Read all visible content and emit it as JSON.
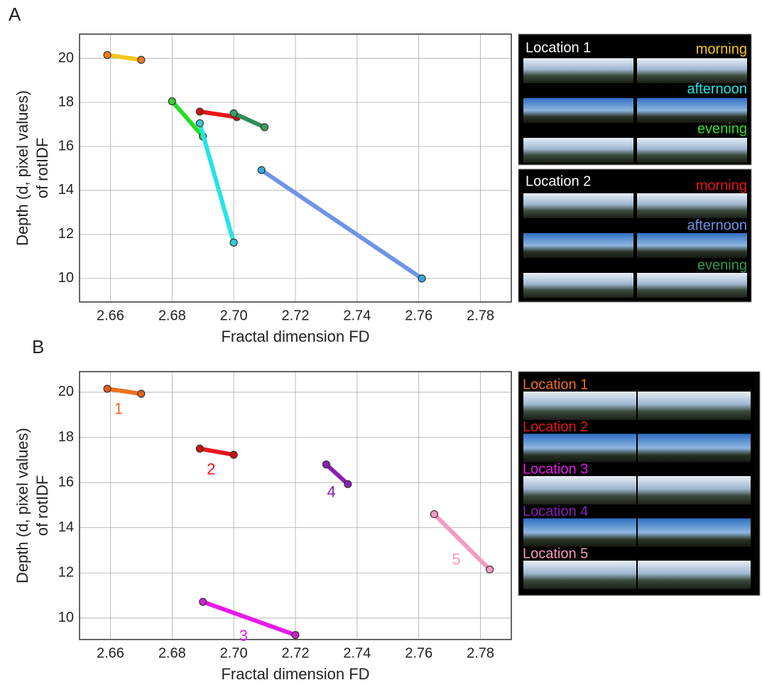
{
  "panel_labels": [
    "A",
    "B"
  ],
  "chart_data": [
    {
      "type": "segments",
      "xlabel": "Fractal dimension FD",
      "ylabel": [
        "Depth (d, pixel values)",
        "of rotIDF"
      ],
      "xlim": [
        2.65,
        2.79
      ],
      "ylim": [
        8.93,
        21.1
      ],
      "xticks": [
        2.66,
        2.68,
        {
          "value": 2.7,
          "label": "2.70"
        },
        2.72,
        2.74,
        2.76,
        2.78
      ],
      "yticks": [
        10,
        12,
        14,
        16,
        18,
        20
      ],
      "grid": true,
      "series": [
        {
          "color": "#f5c518",
          "marker_color": "#f07a20",
          "x": [
            2.659,
            2.67
          ],
          "values": [
            20.15,
            19.93
          ]
        },
        {
          "color": "#22dd22",
          "marker_color": "#44cc33",
          "x": [
            2.68,
            2.69
          ],
          "values": [
            18.05,
            16.45
          ]
        },
        {
          "color": "#e8141a",
          "marker_color": "#cc1111",
          "x": [
            2.689,
            2.701
          ],
          "values": [
            17.58,
            17.33
          ]
        },
        {
          "color": "#2e8b57",
          "marker_color": "#3aa060",
          "x": [
            2.7,
            2.71
          ],
          "values": [
            17.5,
            16.87
          ]
        },
        {
          "color": "#22e5e5",
          "marker_color": "#33ccdd",
          "x": [
            2.689,
            2.7
          ],
          "values": [
            17.05,
            11.63
          ]
        },
        {
          "color": "#6f94e8",
          "marker_color": "#33aadd",
          "x": [
            2.709,
            2.761
          ],
          "values": [
            14.92,
            10.0
          ]
        }
      ]
    },
    {
      "type": "segments",
      "xlabel": "Fractal dimension FD",
      "ylabel": [
        "Depth (d, pixel values)",
        "of rotIDF"
      ],
      "xlim": [
        2.65,
        2.79
      ],
      "ylim": [
        9.05,
        20.91
      ],
      "xticks": [
        2.66,
        2.68,
        {
          "value": 2.7,
          "label": "2.70"
        },
        2.72,
        2.74,
        2.76,
        2.78
      ],
      "yticks": [
        10,
        12,
        14,
        16,
        18,
        20
      ],
      "grid": true,
      "series": [
        {
          "name": "1",
          "color": "#f07020",
          "marker_color": "#e06018",
          "x": [
            2.659,
            2.67
          ],
          "values": [
            20.15,
            19.93
          ]
        },
        {
          "name": "2",
          "color": "#e8141a",
          "marker_color": "#cc1111",
          "x": [
            2.689,
            2.7
          ],
          "values": [
            17.5,
            17.23
          ]
        },
        {
          "name": "3",
          "color": "#e81ae8",
          "marker_color": "#cc22cc",
          "x": [
            2.69,
            2.72
          ],
          "values": [
            10.72,
            9.25
          ]
        },
        {
          "name": "4",
          "color": "#8a1fb5",
          "marker_color": "#8a1fb5",
          "x": [
            2.73,
            2.737
          ],
          "values": [
            16.8,
            15.93
          ]
        },
        {
          "name": "5",
          "color": "#f49ac2",
          "marker_color": "#f49ac2",
          "x": [
            2.765,
            2.783
          ],
          "values": [
            14.6,
            12.15
          ]
        }
      ]
    }
  ],
  "photo_panels": [
    {
      "title": "Location 1",
      "entries": [
        {
          "label": "morning",
          "color": "#f5c518"
        },
        {
          "label": "afternoon",
          "color": "#22e5e5"
        },
        {
          "label": "evening",
          "color": "#33dd22"
        }
      ]
    },
    {
      "title": "Location 2",
      "entries": [
        {
          "label": "morning",
          "color": "#e8141a"
        },
        {
          "label": "afternoon",
          "color": "#6f94e8"
        },
        {
          "label": "evening",
          "color": "#2e9a5a"
        }
      ]
    },
    {
      "entries": [
        {
          "label": "Location 1",
          "color": "#f07020"
        },
        {
          "label": "Location 2",
          "color": "#e8141a"
        },
        {
          "label": "Location 3",
          "color": "#e81ae8"
        },
        {
          "label": "Location 4",
          "color": "#8a1fb5"
        },
        {
          "label": "Location 5",
          "color": "#f49ac2"
        }
      ]
    }
  ]
}
